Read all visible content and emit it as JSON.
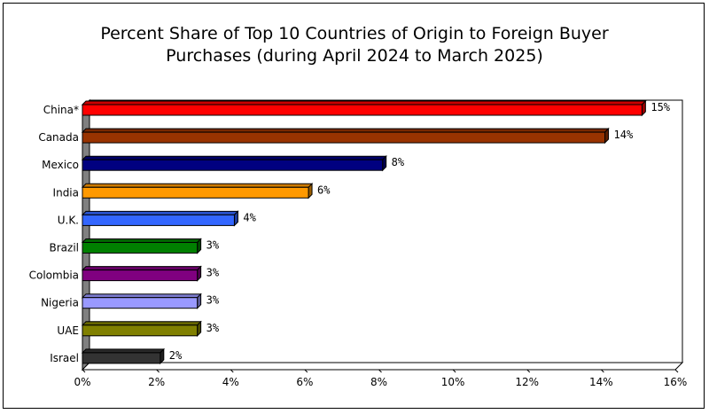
{
  "chart_data": {
    "type": "bar",
    "orientation": "horizontal",
    "title_lines": [
      "Percent Share of Top 10 Countries of Origin to Foreign Buyer",
      "Purchases (during April 2024 to March 2025)"
    ],
    "categories": [
      "China*",
      "Canada",
      "Mexico",
      "India",
      "U.K.",
      "Brazil",
      "Colombia",
      "Nigeria",
      "UAE",
      "Israel"
    ],
    "values": [
      15.1,
      14.1,
      8.1,
      6.1,
      4.1,
      3.1,
      3.1,
      3.1,
      3.1,
      2.1
    ],
    "data_labels": [
      "15%",
      "14%",
      "8%",
      "6%",
      "4%",
      "3%",
      "3%",
      "3%",
      "3%",
      "2%"
    ],
    "colors": [
      "#ff0000",
      "#993300",
      "#000080",
      "#ff9900",
      "#3366ff",
      "#008000",
      "#800080",
      "#9999ff",
      "#808000",
      "#333333"
    ],
    "xlim": [
      0,
      16
    ],
    "xticks": [
      "0%",
      "2%",
      "4%",
      "6%",
      "8%",
      "10%",
      "12%",
      "14%",
      "16%"
    ],
    "grid": false,
    "legend": "none",
    "style": "3d"
  }
}
